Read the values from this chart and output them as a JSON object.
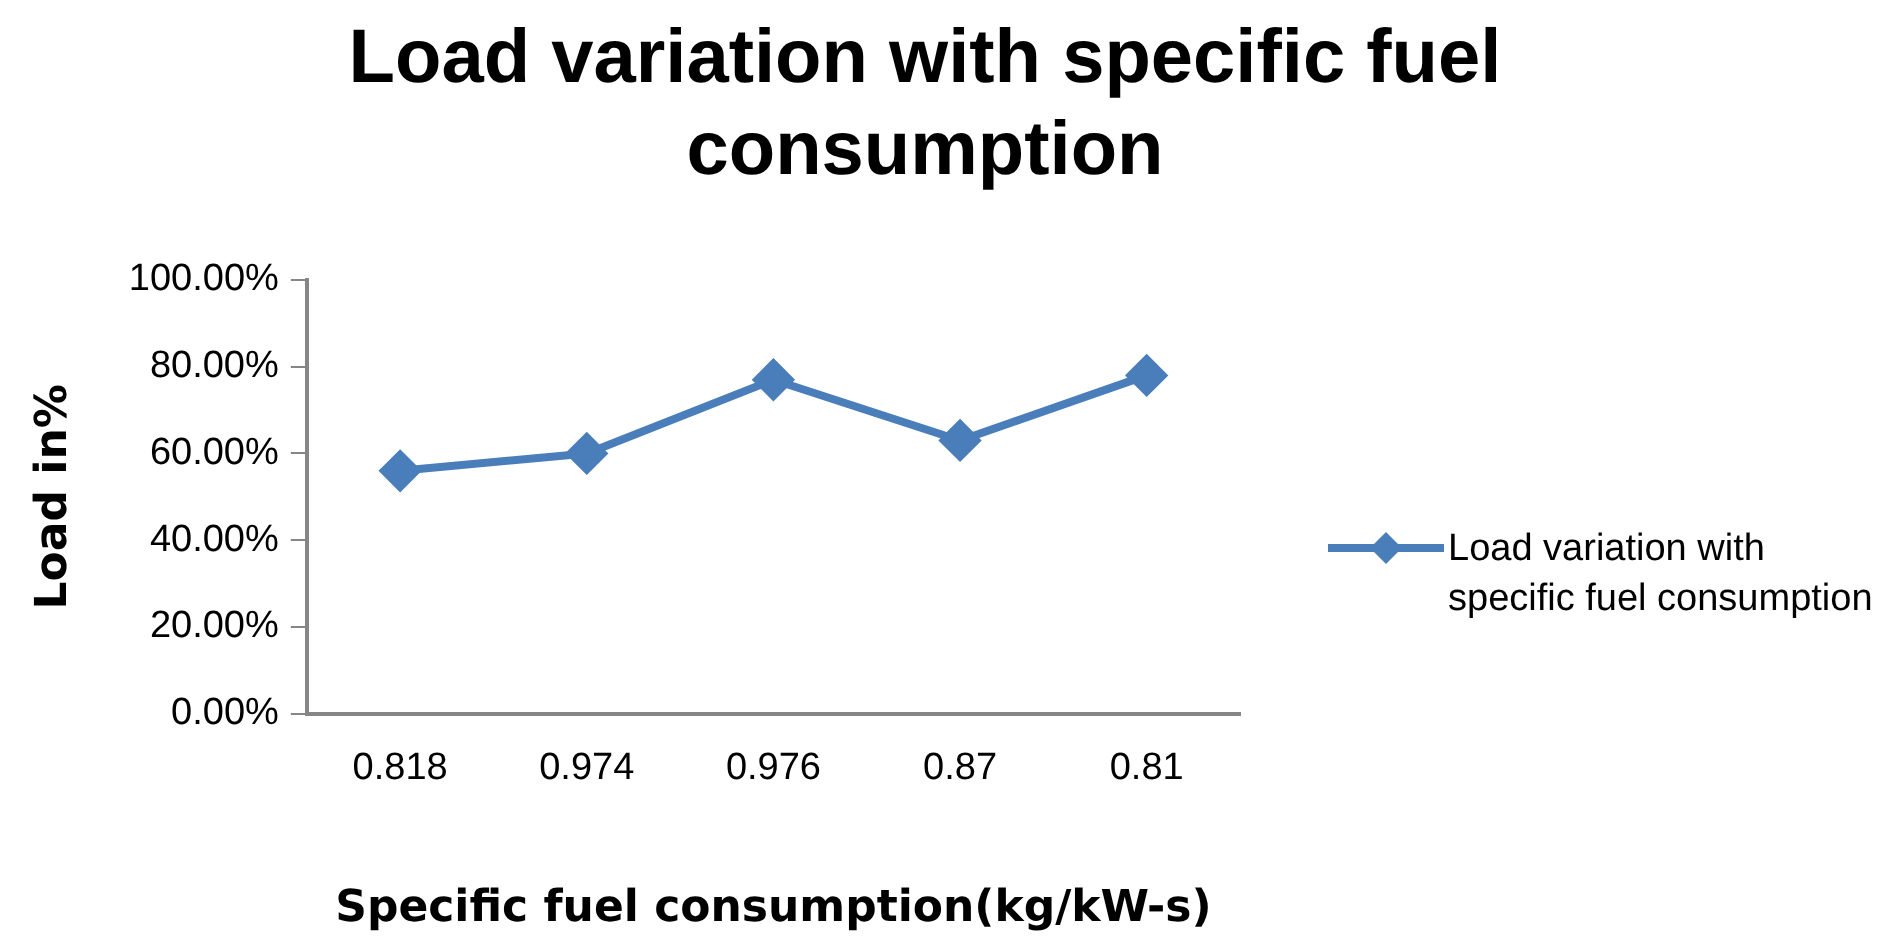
{
  "chart_data": {
    "type": "line",
    "title": "Load variation with specific fuel consumption",
    "xlabel": "Specific fuel consumption(kg/kW-s)",
    "ylabel": "Load in%",
    "categories": [
      "0.818",
      "0.974",
      "0.976",
      "0.87",
      "0.81"
    ],
    "series": [
      {
        "name": "Load variation with specific fuel consumption",
        "color": "#4a7ebb",
        "values": [
          56,
          60,
          77,
          63,
          78
        ]
      }
    ],
    "ylim": [
      0,
      100
    ],
    "yticks": [
      {
        "value": 0,
        "label": "0.00%"
      },
      {
        "value": 20,
        "label": "20.00%"
      },
      {
        "value": 40,
        "label": "40.00%"
      },
      {
        "value": 60,
        "label": "60.00%"
      },
      {
        "value": 80,
        "label": "80.00%"
      },
      {
        "value": 100,
        "label": "100.00%"
      }
    ],
    "grid": false,
    "legend": "right",
    "marker": "diamond",
    "line_style": "solid"
  }
}
